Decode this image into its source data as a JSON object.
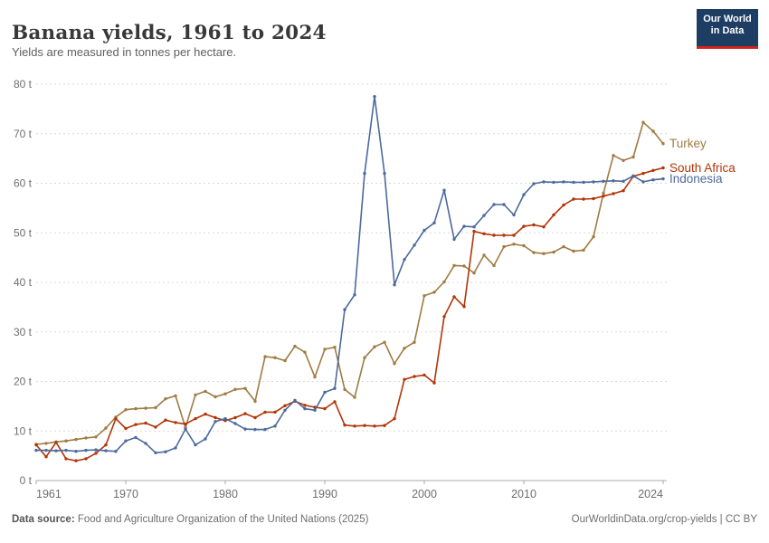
{
  "header": {
    "title": "Banana yields, 1961 to 2024",
    "subtitle": "Yields are measured in tonnes per hectare."
  },
  "logo": {
    "line1": "Our World",
    "line2": "in Data",
    "bg_color": "#1d3d63",
    "accent_color": "#cf2419"
  },
  "chart_data": {
    "type": "line",
    "title": "Banana yields, 1961 to 2024",
    "unit": "t",
    "xlabel": "",
    "ylabel": "tonnes per hectare",
    "xlim": [
      1961,
      2024
    ],
    "ylim": [
      0,
      80
    ],
    "x_ticks": [
      1961,
      1970,
      1980,
      1990,
      2000,
      2010,
      2024
    ],
    "y_ticks": [
      0,
      10,
      20,
      30,
      40,
      50,
      60,
      70,
      80
    ],
    "y_tick_suffix": " t",
    "grid": "dashed-horizontal",
    "legend_position": "end-of-line-labels",
    "years": [
      1961,
      1962,
      1963,
      1964,
      1965,
      1966,
      1967,
      1968,
      1969,
      1970,
      1971,
      1972,
      1973,
      1974,
      1975,
      1976,
      1977,
      1978,
      1979,
      1980,
      1981,
      1982,
      1983,
      1984,
      1985,
      1986,
      1987,
      1988,
      1989,
      1990,
      1991,
      1992,
      1993,
      1994,
      1995,
      1996,
      1997,
      1998,
      1999,
      2000,
      2001,
      2002,
      2003,
      2004,
      2005,
      2006,
      2007,
      2008,
      2009,
      2010,
      2011,
      2012,
      2013,
      2014,
      2015,
      2016,
      2017,
      2018,
      2019,
      2020,
      2021,
      2022,
      2023,
      2024
    ],
    "series": [
      {
        "name": "Turkey",
        "color": "#a07b43",
        "values": [
          7.3,
          7.5,
          7.8,
          8.0,
          8.3,
          8.6,
          8.8,
          10.6,
          12.8,
          14.3,
          14.5,
          14.6,
          14.7,
          16.5,
          17.1,
          10.7,
          17.3,
          18.0,
          16.9,
          17.5,
          18.4,
          18.6,
          16.0,
          25.0,
          24.8,
          24.2,
          27.1,
          25.9,
          20.9,
          26.5,
          26.9,
          18.4,
          16.8,
          24.8,
          27.0,
          27.9,
          23.6,
          26.7,
          27.9,
          37.3,
          38.0,
          40.1,
          43.4,
          43.3,
          41.9,
          45.5,
          43.4,
          47.2,
          47.7,
          47.4,
          46.0,
          45.8,
          46.1,
          47.2,
          46.3,
          46.5,
          49.2,
          58.0,
          65.6,
          64.6,
          65.3,
          72.3,
          70.5,
          68.0
        ]
      },
      {
        "name": "South Africa",
        "color": "#b13507",
        "values": [
          7.2,
          4.8,
          7.7,
          4.4,
          4.0,
          4.4,
          5.5,
          7.2,
          12.5,
          10.5,
          11.3,
          11.6,
          10.8,
          12.2,
          11.7,
          11.4,
          12.5,
          13.4,
          12.7,
          12.1,
          12.7,
          13.5,
          12.7,
          13.8,
          13.8,
          15.1,
          16.0,
          15.2,
          14.8,
          14.5,
          15.9,
          11.2,
          11.0,
          11.1,
          11.0,
          11.1,
          12.5,
          20.4,
          21.0,
          21.3,
          19.7,
          33.1,
          37.1,
          35.1,
          50.3,
          49.8,
          49.5,
          49.5,
          49.5,
          51.3,
          51.6,
          51.2,
          53.6,
          55.6,
          56.8,
          56.8,
          56.9,
          57.4,
          57.9,
          58.5,
          61.4,
          62.0,
          62.6,
          63.1
        ]
      },
      {
        "name": "Indonesia",
        "color": "#4c6a9c",
        "values": [
          6.1,
          6.1,
          6.0,
          6.1,
          5.9,
          6.1,
          6.2,
          6.0,
          5.9,
          8.0,
          8.7,
          7.5,
          5.6,
          5.8,
          6.6,
          10.4,
          7.2,
          8.4,
          11.9,
          12.5,
          11.5,
          10.4,
          10.3,
          10.3,
          11.0,
          14.2,
          16.2,
          14.5,
          14.2,
          17.8,
          18.6,
          34.5,
          37.5,
          62.0,
          77.5,
          62.0,
          39.5,
          44.6,
          47.5,
          50.5,
          52.0,
          58.6,
          48.7,
          51.3,
          51.2,
          53.5,
          55.7,
          55.7,
          53.6,
          57.7,
          59.9,
          60.3,
          60.2,
          60.3,
          60.2,
          60.2,
          60.3,
          60.4,
          60.5,
          60.4,
          61.5,
          60.3,
          60.7,
          60.9
        ]
      }
    ],
    "axis_colors": {
      "grid": "#d9d9d9",
      "axis_line": "#a8a8a8",
      "tick_label": "#6e6e6e"
    }
  },
  "footer": {
    "source_label": "Data source:",
    "source_text": " Food and Agriculture Organization of the United Nations (2025)",
    "credit": "OurWorldinData.org/crop-yields | CC BY"
  }
}
